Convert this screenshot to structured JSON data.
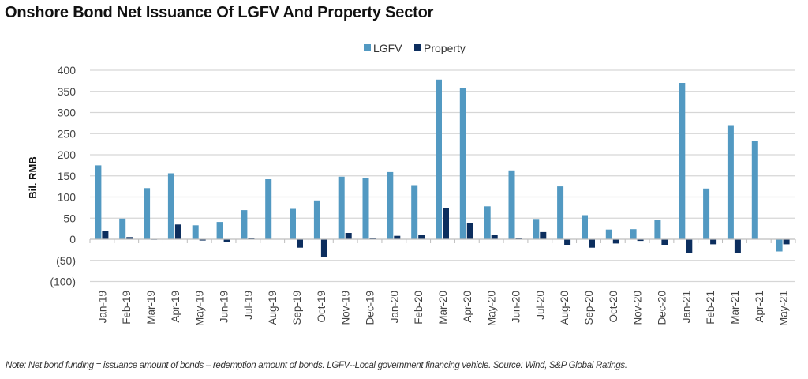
{
  "chart_data": {
    "type": "bar",
    "title": "Onshore Bond Net Issuance Of LGFV And Property Sector",
    "xlabel": "",
    "ylabel": "Bil. RMB",
    "ylim": [
      -100,
      400
    ],
    "yticks": [
      400,
      350,
      300,
      250,
      200,
      150,
      100,
      50,
      0,
      -50,
      -100
    ],
    "ytick_labels": [
      "400",
      "350",
      "300",
      "250",
      "200",
      "150",
      "100",
      "50",
      "0",
      "(50)",
      "(100)"
    ],
    "grid": true,
    "legend_position": "top-center",
    "categories": [
      "Jan-19",
      "Feb-19",
      "Mar-19",
      "Apr-19",
      "May-19",
      "Jun-19",
      "Jul-19",
      "Aug-19",
      "Sep-19",
      "Oct-19",
      "Nov-19",
      "Dec-19",
      "Jan-20",
      "Feb-20",
      "Mar-20",
      "Apr-20",
      "May-20",
      "Jun-20",
      "Jul-20",
      "Aug-20",
      "Sep-20",
      "Oct-20",
      "Nov-20",
      "Dec-20",
      "Jan-21",
      "Feb-21",
      "Mar-21",
      "Apr-21",
      "May-21"
    ],
    "series": [
      {
        "name": "LGFV",
        "color": "#5299c2",
        "values": [
          175,
          49,
          121,
          156,
          33,
          41,
          69,
          142,
          72,
          92,
          148,
          145,
          159,
          128,
          378,
          358,
          78,
          163,
          48,
          125,
          57,
          23,
          24,
          45,
          370,
          120,
          270,
          232,
          -29
        ]
      },
      {
        "name": "Property",
        "color": "#0c2e5e",
        "values": [
          20,
          5,
          1,
          35,
          -3,
          -7,
          2,
          0,
          -20,
          -42,
          15,
          2,
          8,
          11,
          73,
          39,
          10,
          2,
          17,
          -13,
          -20,
          -10,
          -4,
          -13,
          -33,
          -12,
          -32,
          0,
          -12
        ]
      }
    ]
  },
  "footnote": "Note: Net bond funding = issuance amount of bonds – redemption amount of bonds. LGFV--Local government financing vehicle. Source: Wind, S&P Global Ratings."
}
